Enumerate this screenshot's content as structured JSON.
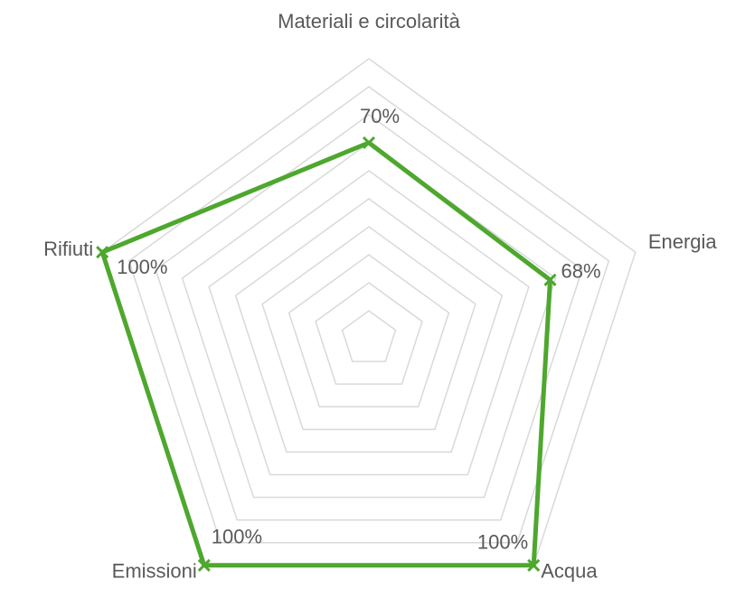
{
  "chart_data": {
    "type": "radar",
    "categories": [
      "Materiali e circolarità",
      "Energia",
      "Acqua",
      "Emissioni",
      "Rifiuti"
    ],
    "series": [
      {
        "color": "#4ea72e",
        "values": [
          70,
          68,
          100,
          100,
          100
        ],
        "value_labels": [
          "70%",
          "68%",
          "100%",
          "100%",
          "100%"
        ]
      }
    ],
    "ylim": [
      0,
      100
    ],
    "yticks": [
      0,
      10,
      20,
      30,
      40,
      50,
      60,
      70,
      80,
      90,
      100
    ],
    "grid": true
  }
}
